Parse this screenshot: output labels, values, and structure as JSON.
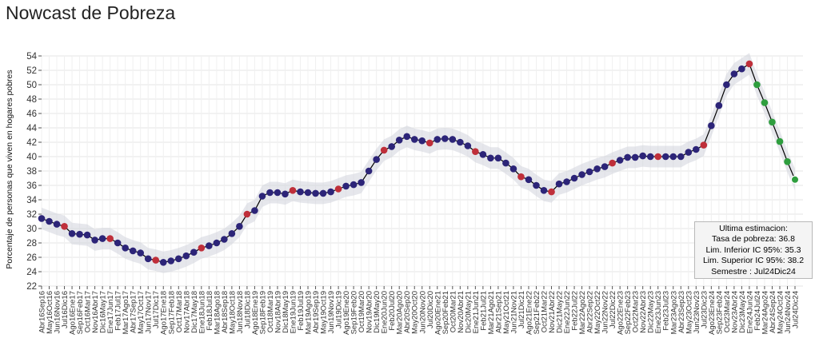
{
  "title": "Nowcast de Pobreza",
  "tooltip": {
    "line1": "Ultima estimacion:",
    "line2": "Tasa de pobreza:  36.8",
    "line3": "Lim. Inferior IC 95%:  35.3",
    "line4": "Lim. Superior IC 95%:  38.2",
    "line5": "Semestre : Jul24Dic24"
  },
  "colors": {
    "observed": "#bf2f3a",
    "nowcast": "#2c2478",
    "forecast": "#2e9e3e",
    "line": "#000000",
    "band": "#d2d4dc"
  },
  "chart_data": {
    "type": "line",
    "title": "Nowcast de Pobreza",
    "ylabel": "Porcentaje de personas que viven en hogares pobres",
    "xlabel": "",
    "ylim": [
      22,
      54
    ],
    "yticks": [
      22,
      24,
      26,
      28,
      30,
      32,
      34,
      36,
      38,
      40,
      42,
      44,
      46,
      48,
      50,
      52,
      54
    ],
    "grid": true,
    "ci_band": "±1.5",
    "categories": [
      "Abr16Sep16",
      "May16Oct16",
      "Jun16Nov16",
      "Jul16Dic16",
      "Ago16Ene17",
      "Sep16Feb17",
      "Oct16Mar17",
      "Nov16Abr17",
      "Dic16May17",
      "Ene17Jun17",
      "Feb17Jul17",
      "Mar17Ago17",
      "Abr17Sep17",
      "May17Oct17",
      "Jun17Nov17",
      "Jul17Dic17",
      "Ago17Ene18",
      "Sep17Feb18",
      "Oct17Mar18",
      "Nov17Abr18",
      "Dic17May18",
      "Ene18Jun18",
      "Feb18Jul18",
      "Mar18Ago18",
      "Abr18Sep18",
      "May18Oct18",
      "Jun18Nov18",
      "Jul18Dic18",
      "Ago18Ene19",
      "Sep18Feb19",
      "Oct18Mar19",
      "Nov18Abr19",
      "Dic18May19",
      "Ene19Jun19",
      "Feb19Jul19",
      "Mar19Ago19",
      "Abr19Sep19",
      "May19Oct19",
      "Jun19Nov19",
      "Jul19Dic19",
      "Ago19Ene20",
      "Sep19Feb20",
      "Oct19Mar20",
      "Nov19Abr20",
      "Dic19May20",
      "Ene20Jun20",
      "Feb20Jul20",
      "Mar20Ago20",
      "Abr20Sep20",
      "May20Oct20",
      "Jun20Nov20",
      "Jul20Dic20",
      "Ago20Ene21",
      "Sep20Feb21",
      "Oct20Mar21",
      "Nov20Abr21",
      "Dic20May21",
      "Ene21Jun21",
      "Feb21Jul21",
      "Mar21Ago21",
      "Abr21Sep21",
      "May21Oct21",
      "Jun21Nov21",
      "Jul21Dic21",
      "Ago21Ene22",
      "Sep21Feb22",
      "Oct21Mar22",
      "Nov21Abr22",
      "Dic21May22",
      "Ene22Jun22",
      "Feb22Jul22",
      "Mar22Ago22",
      "Abr22Sep22",
      "May22Oct22",
      "Jun22Nov22",
      "Jul22Dic22",
      "Ago22Ene23",
      "Sep22Feb23",
      "Oct22Mar23",
      "Nov22Abr23",
      "Dic22May23",
      "Ene23Jun23",
      "Feb23Jul23",
      "Mar23Ago23",
      "Abr23Sep23",
      "May23Oct23",
      "Jun23Nov23",
      "Jul23Dic23",
      "Ago23Ene24",
      "Sep23Feb24",
      "Oct23Mar24",
      "Nov23Abr24",
      "Dic23May24",
      "Ene24Jun24",
      "Feb24Jul24",
      "Mar24Ago24",
      "Abr24Sep24",
      "May24Oct24",
      "Jun24Nov24",
      "Jul24Dic24"
    ],
    "values": [
      31.4,
      31.0,
      30.6,
      30.3,
      29.3,
      29.2,
      29.1,
      28.4,
      28.6,
      28.6,
      28.0,
      27.3,
      26.9,
      26.6,
      25.8,
      25.6,
      25.3,
      25.5,
      25.8,
      26.2,
      26.7,
      27.3,
      27.6,
      28.0,
      28.5,
      29.3,
      30.3,
      32.0,
      32.5,
      34.5,
      35.0,
      35.0,
      34.8,
      35.3,
      35.1,
      35.0,
      34.9,
      34.9,
      35.1,
      35.5,
      35.9,
      36.1,
      36.4,
      38.0,
      39.6,
      40.9,
      41.4,
      42.3,
      42.8,
      42.4,
      42.2,
      41.9,
      42.4,
      42.5,
      42.4,
      42.0,
      41.5,
      40.7,
      40.3,
      39.8,
      39.8,
      39.1,
      38.3,
      37.2,
      36.8,
      36.0,
      35.3,
      35.1,
      36.2,
      36.5,
      37.0,
      37.5,
      37.9,
      38.3,
      38.6,
      39.1,
      39.5,
      39.9,
      39.9,
      40.1,
      40.0,
      40.0,
      40.0,
      40.0,
      40.0,
      40.6,
      41.0,
      41.6,
      44.3,
      47.1,
      50.0,
      51.5,
      52.2,
      52.9,
      50.0,
      47.5,
      44.8,
      42.1,
      39.3,
      36.8
    ],
    "point_types": [
      "n",
      "n",
      "n",
      "o",
      "n",
      "n",
      "n",
      "n",
      "n",
      "o",
      "n",
      "n",
      "n",
      "n",
      "n",
      "o",
      "n",
      "n",
      "n",
      "n",
      "n",
      "o",
      "n",
      "n",
      "n",
      "n",
      "n",
      "o",
      "n",
      "n",
      "n",
      "n",
      "n",
      "o",
      "n",
      "n",
      "n",
      "n",
      "n",
      "o",
      "n",
      "n",
      "n",
      "n",
      "n",
      "o",
      "n",
      "n",
      "n",
      "n",
      "n",
      "o",
      "n",
      "n",
      "n",
      "n",
      "n",
      "o",
      "n",
      "n",
      "n",
      "n",
      "n",
      "o",
      "n",
      "n",
      "n",
      "o",
      "n",
      "n",
      "n",
      "n",
      "n",
      "n",
      "n",
      "o",
      "n",
      "n",
      "n",
      "n",
      "n",
      "o",
      "n",
      "n",
      "n",
      "n",
      "n",
      "o",
      "n",
      "n",
      "n",
      "n",
      "n",
      "o",
      "f",
      "f",
      "f",
      "f",
      "f",
      "f"
    ]
  }
}
